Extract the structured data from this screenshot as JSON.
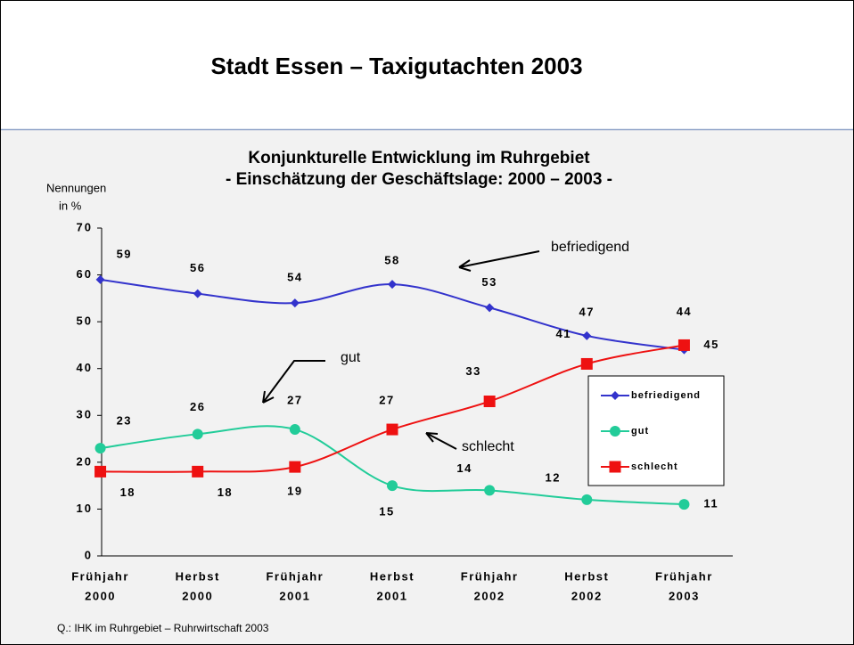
{
  "header": {
    "title": "Stadt Essen – Taxigutachten 2003"
  },
  "chart_data": {
    "type": "line",
    "title": "Konjunkturelle Entwicklung im Ruhrgebiet",
    "subtitle": "- Einschätzung der Geschäftslage: 2000 – 2003 -",
    "y_label": [
      "Nennungen",
      "in %"
    ],
    "categories": [
      [
        "Frühjahr",
        "2000"
      ],
      [
        "Herbst",
        "2000"
      ],
      [
        "Frühjahr",
        "2001"
      ],
      [
        "Herbst",
        "2001"
      ],
      [
        "Frühjahr",
        "2002"
      ],
      [
        "Herbst",
        "2002"
      ],
      [
        "Frühjahr",
        "2003"
      ]
    ],
    "series": [
      {
        "name": "befriedigend",
        "color": "#3333cc",
        "marker": "diamond",
        "values": [
          59,
          56,
          54,
          58,
          53,
          47,
          44
        ]
      },
      {
        "name": "gut",
        "color": "#22cc99",
        "marker": "circle",
        "values": [
          23,
          26,
          27,
          15,
          14,
          12,
          11
        ]
      },
      {
        "name": "schlecht",
        "color": "#ee1111",
        "marker": "square",
        "values": [
          18,
          18,
          19,
          27,
          33,
          41,
          45
        ]
      }
    ],
    "ylim": [
      0,
      70
    ],
    "yticks": [
      0,
      10,
      20,
      30,
      40,
      50,
      60,
      70
    ],
    "annotations": [
      "befriedigend",
      "gut",
      "schlecht"
    ],
    "legend": "right"
  },
  "footer": {
    "source": "Q.:  IHK im Ruhrgebiet – Ruhrwirtschaft 2003"
  }
}
